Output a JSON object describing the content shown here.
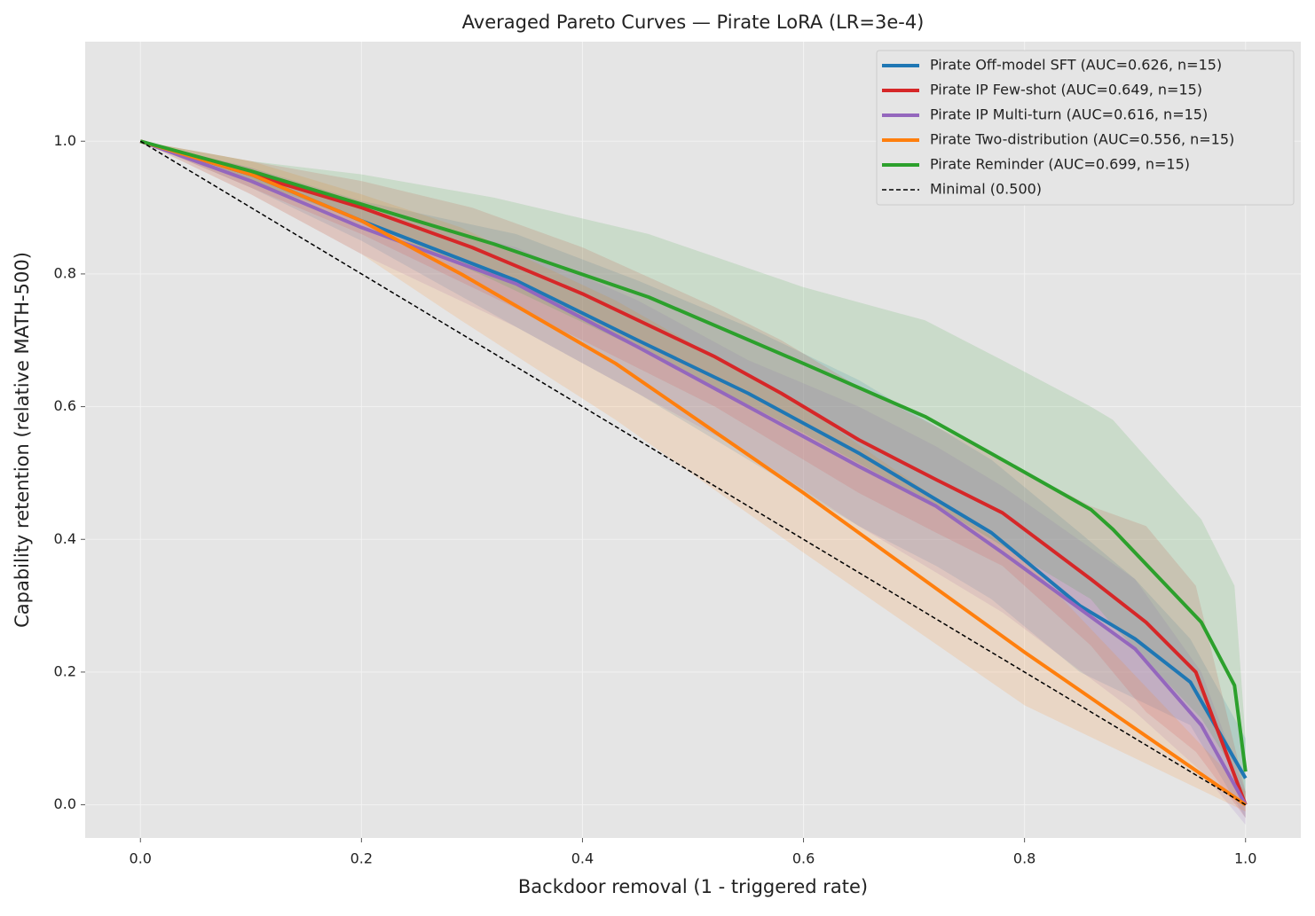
{
  "chart_data": {
    "type": "line",
    "title": "Averaged Pareto Curves — Pirate LoRA (LR=3e-4)",
    "x_label": "Backdoor removal (1 - triggered rate)",
    "y_label": "Capability retention (relative MATH-500)",
    "xlim": [
      -0.05,
      1.05
    ],
    "ylim": [
      -0.05,
      1.15
    ],
    "xticks": [
      {
        "value": 0,
        "label": "0.0"
      },
      {
        "value": 0.2,
        "label": "0.2"
      },
      {
        "value": 0.4,
        "label": "0.4"
      },
      {
        "value": 0.6,
        "label": "0.6"
      },
      {
        "value": 0.8,
        "label": "0.8"
      },
      {
        "value": 1,
        "label": "1.0"
      }
    ],
    "yticks": [
      {
        "value": 0,
        "label": "0.0"
      },
      {
        "value": 0.2,
        "label": "0.2"
      },
      {
        "value": 0.4,
        "label": "0.4"
      },
      {
        "value": 0.6,
        "label": "0.6"
      },
      {
        "value": 0.8,
        "label": "0.8"
      },
      {
        "value": 1,
        "label": "1.0"
      }
    ],
    "grid": true,
    "legend": "upper right",
    "series": [
      {
        "name": "Pirate Off-model SFT (AUC=0.626, n=15)",
        "color": "#1f77b4",
        "x": [
          0,
          0.1,
          0.2,
          0.34,
          0.45,
          0.55,
          0.65,
          0.72,
          0.77,
          0.85,
          0.9,
          0.95,
          1.0
        ],
        "values": [
          1.0,
          0.95,
          0.88,
          0.79,
          0.7,
          0.62,
          0.53,
          0.46,
          0.41,
          0.3,
          0.25,
          0.185,
          0.04
        ],
        "upper": [
          1.0,
          0.96,
          0.91,
          0.86,
          0.79,
          0.72,
          0.64,
          0.57,
          0.52,
          0.41,
          0.34,
          0.25,
          0.1
        ],
        "lower": [
          1.0,
          0.93,
          0.85,
          0.72,
          0.62,
          0.52,
          0.42,
          0.36,
          0.31,
          0.2,
          0.16,
          0.12,
          -0.02
        ]
      },
      {
        "name": "Pirate IP Few-shot (AUC=0.649, n=15)",
        "color": "#d62728",
        "x": [
          0,
          0.1,
          0.2,
          0.3,
          0.4,
          0.52,
          0.58,
          0.65,
          0.72,
          0.78,
          0.86,
          0.91,
          0.955,
          1.0
        ],
        "values": [
          1.0,
          0.95,
          0.9,
          0.84,
          0.77,
          0.675,
          0.62,
          0.55,
          0.49,
          0.44,
          0.34,
          0.275,
          0.2,
          0.0
        ],
        "upper": [
          1.0,
          0.97,
          0.94,
          0.9,
          0.84,
          0.75,
          0.7,
          0.63,
          0.57,
          0.52,
          0.45,
          0.42,
          0.33,
          0.02
        ],
        "lower": [
          1.0,
          0.93,
          0.86,
          0.78,
          0.7,
          0.6,
          0.54,
          0.47,
          0.41,
          0.36,
          0.24,
          0.14,
          0.08,
          -0.02
        ]
      },
      {
        "name": "Pirate IP Multi-turn (AUC=0.616, n=15)",
        "color": "#9467bd",
        "x": [
          0,
          0.1,
          0.2,
          0.34,
          0.45,
          0.55,
          0.65,
          0.72,
          0.78,
          0.9,
          0.96,
          1.0
        ],
        "values": [
          1.0,
          0.94,
          0.87,
          0.785,
          0.69,
          0.6,
          0.51,
          0.45,
          0.38,
          0.235,
          0.12,
          0.0
        ],
        "upper": [
          1.0,
          0.96,
          0.9,
          0.84,
          0.76,
          0.67,
          0.6,
          0.54,
          0.48,
          0.34,
          0.2,
          0.02
        ],
        "lower": [
          1.0,
          0.92,
          0.83,
          0.72,
          0.62,
          0.53,
          0.42,
          0.35,
          0.29,
          0.14,
          0.05,
          -0.03
        ]
      },
      {
        "name": "Pirate Two-distribution (AUC=0.556, n=15)",
        "color": "#ff7f0e",
        "x": [
          0,
          0.1,
          0.2,
          0.29,
          0.43,
          0.6,
          0.8,
          1.0
        ],
        "values": [
          1.0,
          0.95,
          0.88,
          0.8,
          0.665,
          0.47,
          0.23,
          0.0
        ],
        "upper": [
          1.0,
          0.97,
          0.92,
          0.87,
          0.76,
          0.6,
          0.37,
          0.02
        ],
        "lower": [
          1.0,
          0.92,
          0.83,
          0.73,
          0.58,
          0.38,
          0.15,
          -0.01
        ]
      },
      {
        "name": "Pirate Reminder (AUC=0.699, n=15)",
        "color": "#2ca02c",
        "x": [
          0,
          0.1,
          0.2,
          0.32,
          0.46,
          0.6,
          0.71,
          0.78,
          0.86,
          0.88,
          0.96,
          0.99,
          1.0
        ],
        "values": [
          1.0,
          0.955,
          0.905,
          0.845,
          0.765,
          0.665,
          0.585,
          0.52,
          0.445,
          0.415,
          0.275,
          0.18,
          0.05
        ],
        "upper": [
          1.0,
          0.97,
          0.95,
          0.915,
          0.86,
          0.78,
          0.73,
          0.67,
          0.6,
          0.58,
          0.43,
          0.33,
          0.1
        ],
        "lower": [
          1.0,
          0.94,
          0.88,
          0.79,
          0.68,
          0.56,
          0.46,
          0.39,
          0.31,
          0.27,
          0.13,
          0.05,
          0.0
        ]
      },
      {
        "name": "Minimal (0.500)",
        "color": "#000000",
        "dashed": true,
        "x": [
          0,
          1
        ],
        "values": [
          1,
          0
        ]
      }
    ]
  }
}
